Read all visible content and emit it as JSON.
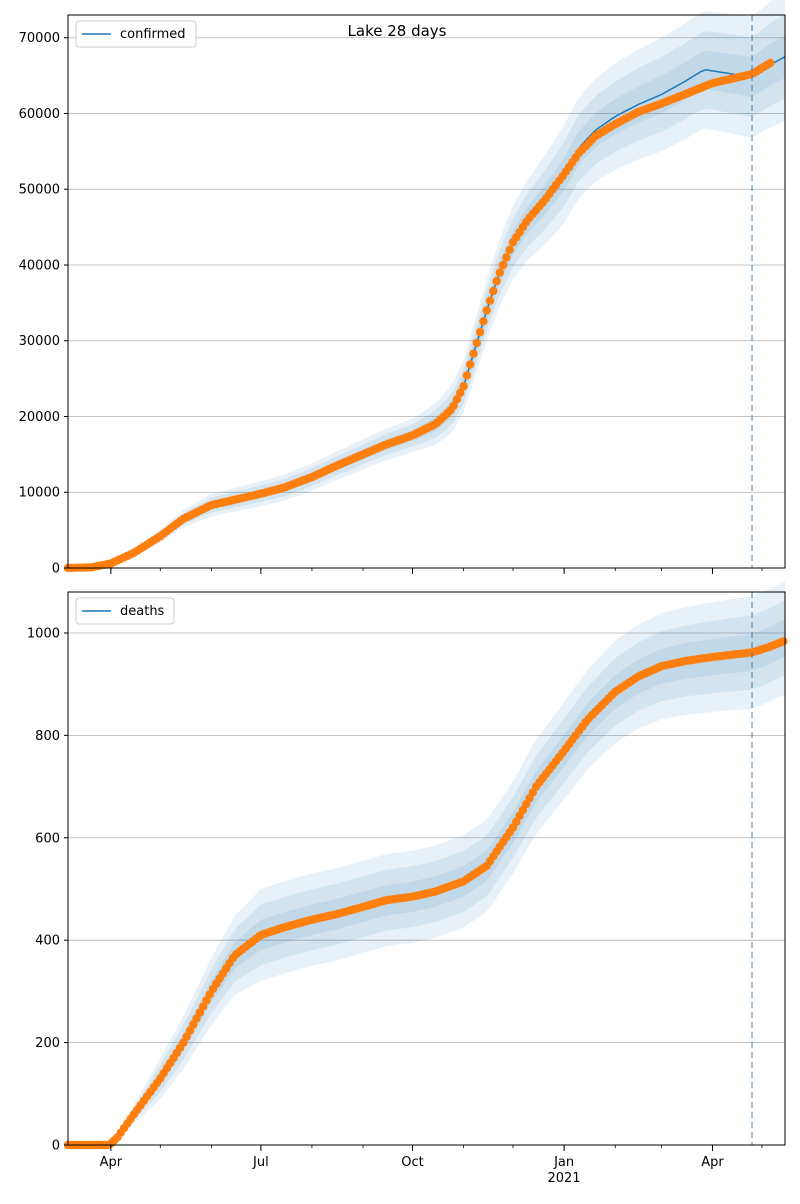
{
  "figure": {
    "title": "Lake 28 days"
  },
  "colors": {
    "model_line": "#1f77b4",
    "observed_points": "#ff7f0e",
    "band": "#1f77b4",
    "gridline": "#b0b0b0",
    "vline": "#1f77b4"
  },
  "chart_data": [
    {
      "type": "line",
      "title": "Lake 28 days",
      "legend": "top-left",
      "legend_label": "confirmed",
      "grid": "horizontal",
      "x_start": "2020-03-06",
      "x_end": "2021-05-15",
      "xlim": [
        "2020-03-06",
        "2021-05-15"
      ],
      "ylim": [
        0,
        73000
      ],
      "y_ticks": [
        0,
        10000,
        20000,
        30000,
        40000,
        50000,
        60000,
        70000
      ],
      "y_tick_labels": [
        "0",
        "10000",
        "20000",
        "30000",
        "40000",
        "50000",
        "60000",
        "70000"
      ],
      "forecast_start": "2021-04-25",
      "observed_end": "2021-05-07",
      "model_keypoints": [
        [
          "2020-03-06",
          0
        ],
        [
          "2020-03-20",
          80
        ],
        [
          "2020-04-01",
          600
        ],
        [
          "2020-04-15",
          2000
        ],
        [
          "2020-05-01",
          4200
        ],
        [
          "2020-05-15",
          6500
        ],
        [
          "2020-06-01",
          8300
        ],
        [
          "2020-06-15",
          9000
        ],
        [
          "2020-07-01",
          9800
        ],
        [
          "2020-07-15",
          10600
        ],
        [
          "2020-08-01",
          12000
        ],
        [
          "2020-08-15",
          13400
        ],
        [
          "2020-09-01",
          15000
        ],
        [
          "2020-09-15",
          16300
        ],
        [
          "2020-10-01",
          17500
        ],
        [
          "2020-10-15",
          19000
        ],
        [
          "2020-10-25",
          21000
        ],
        [
          "2020-11-01",
          24000
        ],
        [
          "2020-11-08",
          29000
        ],
        [
          "2020-11-15",
          34000
        ],
        [
          "2020-11-22",
          38500
        ],
        [
          "2020-12-01",
          43000
        ],
        [
          "2020-12-10",
          46000
        ],
        [
          "2020-12-20",
          48500
        ],
        [
          "2021-01-01",
          52000
        ],
        [
          "2021-01-10",
          55500
        ],
        [
          "2021-01-20",
          57800
        ],
        [
          "2021-02-01",
          59600
        ],
        [
          "2021-02-15",
          61200
        ],
        [
          "2021-03-01",
          62500
        ],
        [
          "2021-03-15",
          64200
        ],
        [
          "2021-03-27",
          65800
        ],
        [
          "2021-04-25",
          64800
        ],
        [
          "2021-05-05",
          66300
        ],
        [
          "2021-05-15",
          67500
        ]
      ],
      "observed_keypoints": [
        [
          "2020-03-06",
          0
        ],
        [
          "2020-03-20",
          80
        ],
        [
          "2020-04-01",
          600
        ],
        [
          "2020-04-15",
          2000
        ],
        [
          "2020-05-01",
          4200
        ],
        [
          "2020-05-15",
          6500
        ],
        [
          "2020-06-01",
          8300
        ],
        [
          "2020-06-15",
          9000
        ],
        [
          "2020-07-01",
          9800
        ],
        [
          "2020-07-15",
          10600
        ],
        [
          "2020-08-01",
          12000
        ],
        [
          "2020-08-15",
          13400
        ],
        [
          "2020-09-01",
          15000
        ],
        [
          "2020-09-15",
          16300
        ],
        [
          "2020-10-01",
          17500
        ],
        [
          "2020-10-15",
          19000
        ],
        [
          "2020-10-25",
          21000
        ],
        [
          "2020-11-01",
          24000
        ],
        [
          "2020-11-08",
          29000
        ],
        [
          "2020-11-15",
          34000
        ],
        [
          "2020-11-22",
          38500
        ],
        [
          "2020-12-01",
          43000
        ],
        [
          "2020-12-10",
          46000
        ],
        [
          "2020-12-20",
          48500
        ],
        [
          "2021-01-01",
          52000
        ],
        [
          "2021-01-10",
          54800
        ],
        [
          "2021-01-20",
          57000
        ],
        [
          "2021-02-01",
          58600
        ],
        [
          "2021-02-15",
          60200
        ],
        [
          "2021-03-01",
          61300
        ],
        [
          "2021-03-15",
          62500
        ],
        [
          "2021-04-01",
          64000
        ],
        [
          "2021-04-25",
          65200
        ],
        [
          "2021-05-07",
          66800
        ]
      ],
      "band_half_widths": [
        [
          "2020-03-06",
          0
        ],
        [
          "2020-04-01",
          200
        ],
        [
          "2020-06-01",
          1500
        ],
        [
          "2020-08-01",
          1800
        ],
        [
          "2020-10-01",
          2200
        ],
        [
          "2020-11-15",
          4000
        ],
        [
          "2021-01-01",
          6500
        ],
        [
          "2021-03-01",
          7500
        ],
        [
          "2021-04-25",
          8000
        ],
        [
          "2021-05-15",
          8500
        ]
      ]
    },
    {
      "type": "line",
      "title": "",
      "legend": "top-left",
      "legend_label": "deaths",
      "grid": "horizontal",
      "x_start": "2020-03-06",
      "x_end": "2021-05-15",
      "xlim": [
        "2020-03-06",
        "2021-05-15"
      ],
      "ylim": [
        0,
        1080
      ],
      "y_ticks": [
        0,
        200,
        400,
        600,
        800,
        1000
      ],
      "y_tick_labels": [
        "0",
        "200",
        "400",
        "600",
        "800",
        "1000"
      ],
      "x_ticks": [
        "2020-04-01",
        "2020-07-01",
        "2020-10-01",
        "2021-01-01",
        "2021-04-01"
      ],
      "x_tick_labels": [
        "Apr",
        "Jul",
        "Oct",
        "Jan",
        "Apr"
      ],
      "x_year_label": "2021",
      "forecast_start": "2021-04-25",
      "observed_end": "2021-05-15",
      "model_keypoints": [
        [
          "2020-03-06",
          0
        ],
        [
          "2020-03-31",
          0
        ],
        [
          "2020-04-05",
          15
        ],
        [
          "2020-04-15",
          60
        ],
        [
          "2020-05-01",
          130
        ],
        [
          "2020-05-15",
          200
        ],
        [
          "2020-06-01",
          300
        ],
        [
          "2020-06-15",
          370
        ],
        [
          "2020-07-01",
          410
        ],
        [
          "2020-07-15",
          425
        ],
        [
          "2020-08-01",
          440
        ],
        [
          "2020-08-15",
          450
        ],
        [
          "2020-09-01",
          465
        ],
        [
          "2020-09-15",
          478
        ],
        [
          "2020-10-01",
          485
        ],
        [
          "2020-10-15",
          495
        ],
        [
          "2020-11-01",
          515
        ],
        [
          "2020-11-15",
          545
        ],
        [
          "2020-12-01",
          620
        ],
        [
          "2020-12-15",
          700
        ],
        [
          "2021-01-01",
          770
        ],
        [
          "2021-01-15",
          830
        ],
        [
          "2021-02-01",
          885
        ],
        [
          "2021-02-15",
          915
        ],
        [
          "2021-03-01",
          935
        ],
        [
          "2021-03-15",
          945
        ],
        [
          "2021-04-01",
          953
        ],
        [
          "2021-04-25",
          962
        ],
        [
          "2021-05-05",
          975
        ],
        [
          "2021-05-15",
          990
        ]
      ],
      "observed_keypoints": [
        [
          "2020-03-06",
          0
        ],
        [
          "2020-03-31",
          0
        ],
        [
          "2020-04-05",
          15
        ],
        [
          "2020-04-15",
          60
        ],
        [
          "2020-05-01",
          130
        ],
        [
          "2020-05-15",
          200
        ],
        [
          "2020-06-01",
          300
        ],
        [
          "2020-06-15",
          370
        ],
        [
          "2020-07-01",
          410
        ],
        [
          "2020-07-15",
          425
        ],
        [
          "2020-08-01",
          440
        ],
        [
          "2020-08-15",
          450
        ],
        [
          "2020-09-01",
          465
        ],
        [
          "2020-09-15",
          478
        ],
        [
          "2020-10-01",
          485
        ],
        [
          "2020-10-15",
          495
        ],
        [
          "2020-11-01",
          515
        ],
        [
          "2020-11-15",
          545
        ],
        [
          "2020-12-01",
          620
        ],
        [
          "2020-12-15",
          700
        ],
        [
          "2021-01-01",
          770
        ],
        [
          "2021-01-15",
          830
        ],
        [
          "2021-02-01",
          885
        ],
        [
          "2021-02-15",
          915
        ],
        [
          "2021-03-01",
          935
        ],
        [
          "2021-03-15",
          945
        ],
        [
          "2021-04-01",
          953
        ],
        [
          "2021-04-25",
          962
        ],
        [
          "2021-05-05",
          972
        ],
        [
          "2021-05-15",
          985
        ]
      ],
      "band_half_widths": [
        [
          "2020-03-06",
          0
        ],
        [
          "2020-04-05",
          5
        ],
        [
          "2020-05-01",
          40
        ],
        [
          "2020-07-01",
          90
        ],
        [
          "2020-10-01",
          90
        ],
        [
          "2020-12-01",
          90
        ],
        [
          "2021-02-01",
          100
        ],
        [
          "2021-04-25",
          110
        ],
        [
          "2021-05-15",
          110
        ]
      ]
    }
  ]
}
